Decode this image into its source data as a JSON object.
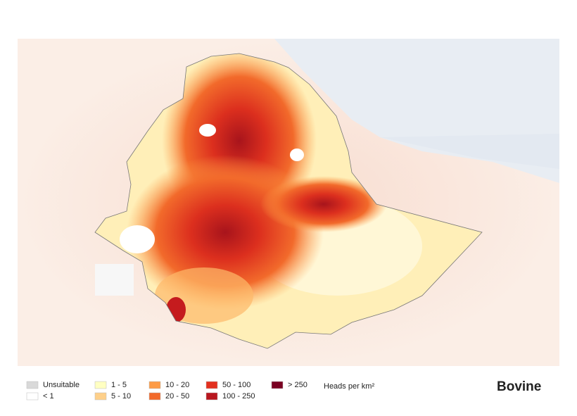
{
  "map": {
    "title": "Bovine",
    "legend": {
      "unit": "Heads per km²",
      "items": [
        {
          "label": "Unsuitable",
          "color": "#d9d9d9"
        },
        {
          "label": "< 1",
          "color": "#ffffff"
        },
        {
          "label": "1 - 5",
          "color": "#ffffc2"
        },
        {
          "label": "5 - 10",
          "color": "#fed08a"
        },
        {
          "label": "10 - 20",
          "color": "#fd9b45"
        },
        {
          "label": "20 - 50",
          "color": "#f26a2b"
        },
        {
          "label": "50 - 100",
          "color": "#e3301e"
        },
        {
          "label": "100 - 250",
          "color": "#b8161e"
        },
        {
          "label": "> 250",
          "color": "#7a0022"
        }
      ]
    }
  }
}
